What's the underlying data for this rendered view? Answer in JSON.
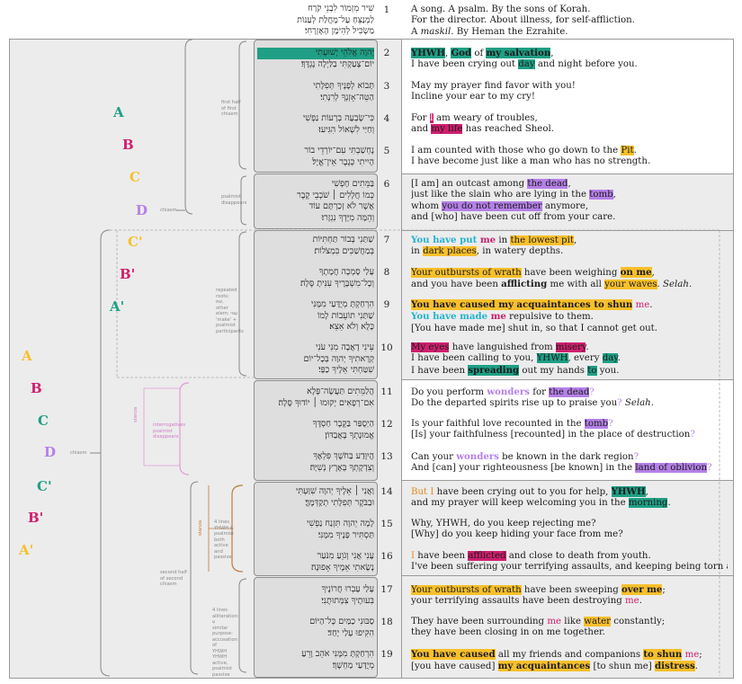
{
  "colors": {
    "orange": "#f7c02b",
    "green": "#1f9f85",
    "purple": "#b580e8",
    "magenta": "#cf1f6e",
    "cyan": "#22b3cf",
    "brown": "#c07a3c",
    "pink": "#e59ad8"
  },
  "outer_labels": {
    "a": "A",
    "b": "B",
    "c": "C",
    "d": "D",
    "c2": "C'",
    "b2": "B'",
    "a2": "A'"
  },
  "inner_labels_top": {
    "a": "A",
    "b": "B",
    "c": "C",
    "d": "D"
  },
  "inner_labels_mid": {
    "c2": "C'",
    "b2": "B'",
    "a2": "A'"
  },
  "notes": {
    "chiasm_outer": "chiasm",
    "chiasm_top": "chiasm",
    "first_half": "first half of first chiasm",
    "psalmist_disappears": "psalmist disappears",
    "repeated_roots": "repeated roots:\nשׁתּ,\nother elem: עִנּוּי\n'make' +\npsalmist\nparticipants",
    "interrogatives": "interrogatives\npsalmist disappears",
    "second_half": "second half of second chiasm",
    "four_lines_a": "4 lines\nYHWH &\npsalmist both\nactive and\npassive",
    "four_lines_b": "4 lines\nalliteration: עִ\nsimilar purpose:\naccusation of\nYHWH\nYHWH active,\npsalmist passive",
    "vertical_a": "stanza",
    "vertical_b": "stanza"
  },
  "verse_numbers": [
    "1",
    "2",
    "3",
    "4",
    "5",
    "6",
    "7",
    "8",
    "9",
    "10",
    "11",
    "12",
    "13",
    "14",
    "15",
    "16",
    "17",
    "18",
    "19"
  ],
  "hebrew": {
    "v1": [
      "שִׁיר מִזְמוֹר לִבְנֵי קֹרַח",
      "לַמְנַצֵּחַ עַל־מָחֲלַת לְעַנּוֹת",
      "מַשְׂכִּיל לְהֵימָן הָאֶזְרָחִי׃"
    ],
    "v2": [
      "יְהוָה אֱלֹהֵי יְשׁוּעָתִי",
      "יוֹם־צָעַקְתִּי בַלַּיְלָה נֶגְדֶּךָ׃"
    ],
    "v3": [
      "תָּבוֹא לְפָנֶיךָ תְּפִלָּתִי",
      "הַטֵּה־אָזְנְךָ לְרִנָּתִי׃"
    ],
    "v4": [
      "כִּי־שָׂבְעָה בְרָעוֹת נַפְשִׁי",
      "וְחַיַּי לִשְׁאוֹל הִגִּיעוּ׃"
    ],
    "v5": [
      "נֶחְשַׁבְתִּי עִם־יוֹרְדֵי בוֹר",
      "הָיִיתִי כְּגֶבֶר אֵין־אֱיָל׃"
    ],
    "v6": [
      "בַּמֵּתִים חָפְשִׁי",
      "כְּמוֹ חֲלָלִים ׀ שֹׁכְבֵי קֶבֶר",
      "אֲשֶׁר לֹא זְכַרְתָּם עוֹד",
      "וְהֵמָּה מִיָּדְךָ נִגְזָרוּ׃"
    ],
    "v7": [
      "שַׁתַּנִי בְּבוֹר תַּחְתִּיּוֹת",
      "בְּמַחֲשַׁכִּים בִּמְצֹלוֹת׃"
    ],
    "v8": [
      "עָלַי סָמְכָה חֲמָתֶךָ",
      "וְכָל־מִשְׁבָּרֶיךָ עִנִּיתָ סֶּלָה׃"
    ],
    "v9": [
      "הִרְחַקְתָּ מְיֻדָּעַי מִמֶּנִּי",
      "שַׁתַּנִי תוֹעֵבוֹת לָמוֹ",
      "כָּלֻא וְלֹא אֵצֵא׃"
    ],
    "v10": [
      "עֵינִי דָאֲבָה מִנִּי עֹנִי",
      "קְרָאתִיךָ יְהוָה בְּכָל־יוֹם",
      "שִׁטַּחְתִּי אֵלֶיךָ כַפָּי׃"
    ],
    "v11": [
      "הֲלַמֵּתִים תַּעֲשֶׂה־פֶּלֶא",
      "אִם־רְפָאִים יָקוּמוּ ׀ יוֹדוּךָ סֶּלָה׃"
    ],
    "v12": [
      "הַיְסֻפַּר בַּקֶּבֶר חַסְדֶּךָ",
      "אֱמוּנָתְךָ בָּאֲבַדּוֹן׃"
    ],
    "v13": [
      "הֲיִוָּדַע בַּחֹשֶׁךְ פִּלְאֶךָ",
      "וְצִדְקָתְךָ בְּאֶרֶץ נְשִׁיָּה׃"
    ],
    "v14": [
      "וַאֲנִי ׀ אֵלֶיךָ יְהוָה שִׁוַּעְתִּי",
      "וּבַבֹּקֶר תְּפִלָּתִי תְקַדְּמֶךָּ׃"
    ],
    "v15": [
      "לָמָה יְהוָה תִּזְנַח נַפְשִׁי",
      "תַּסְתִּיר פָּנֶיךָ מִמֶּנִּי׃"
    ],
    "v16": [
      "עָנִי אֲנִי וְגֹוֵעַ מִנֹּעַר",
      "נָשָׂאתִי אֵמֶיךָ אָפוּנָה׃"
    ],
    "v17": [
      "עָלַי עָבְרוּ חֲרוֹנֶיךָ",
      "בִּעוּתֶיךָ צִמְּתוּתֻנִי׃"
    ],
    "v18": [
      "סַבּוּנִי כַמַּיִם כָּל־הַיּוֹם",
      "הִקִּיפוּ עָלַי יָחַד׃"
    ],
    "v19": [
      "הִרְחַקְתָּ מִמֶּנִּי אֹהֵב וָרֵעַ",
      "מְיֻדָּעַי מַחְשָׁךְ׃"
    ]
  },
  "english": {
    "v1": {
      "l1": "A song. A psalm. By the sons of Korah.",
      "l2": "For the director. About illness, for self-affliction.",
      "l3a": "A ",
      "l3b": "maskil",
      "l3c": ". By Heman the Ezrahite."
    },
    "v2": {
      "a": "YHWH",
      "b": ",",
      "c": "God",
      "d": " of ",
      "e": "my salvation",
      ".": ",",
      "l2a": "I have been crying out ",
      "l2b": "day",
      "l2c": " and night before you."
    },
    "v3": {
      "l1": "May my prayer find favor with you!",
      "l2": "Incline your ear to my cry!"
    },
    "v4": {
      "a": "For ",
      "b": "I",
      "c": " am weary of troubles,",
      "d": "and ",
      "e": "my life",
      "f": " has reached Sheol."
    },
    "v5": {
      "a": "I am counted with those who go down to the ",
      "b": "Pit",
      ".": ".",
      "l2": "I have become just like a man who has no strength."
    },
    "v6": {
      "a": "[I am] an outcast among ",
      "b": "the dead",
      ".": ",",
      "c": "just like the slain who are lying in the ",
      "d": "tomb",
      "e": ",",
      "f": "whom ",
      "g": "you do not remember",
      "h": " anymore,",
      "l4": "and [who] have been cut off from your care."
    },
    "v7": {
      "a": "You have put ",
      "b": "me",
      "c": " in ",
      "d": "the lowest pit",
      "e": ",",
      "f": "in ",
      "g": "dark places",
      "h": ", in watery depths."
    },
    "v8": {
      "a": "Your outbursts of wrath",
      "b": " have been weighing ",
      "c": "on me",
      "d": ",",
      "e": "and you have been ",
      "f": "afflicting",
      "g": " me with all ",
      "h": "your waves",
      "i": ". ",
      "j": "Selah",
      "k": "."
    },
    "v9": {
      "a": "You have caused my acquaintances to shun",
      "b": " me",
      "c": ".",
      "d": "You have made",
      "e": " me",
      "f": " repulsive to them.",
      "l3": "[You have made me] shut in, so that I cannot get out."
    },
    "v10": {
      "a": "My eyes",
      "b": " have languished from ",
      "c": "misery",
      "d": ".",
      "e": "I have been calling to you, ",
      "f": "YHWH",
      "g": ", every ",
      "h": "day",
      "i": ".",
      "j": "I have been ",
      "k": "spreading",
      "l": " out my hands ",
      "m": "to",
      "n": " you."
    },
    "v11": {
      "a": "Do you perform ",
      "b": "wonders",
      "c": " for ",
      "d": "the dead",
      "e": "?",
      "f": "Do the departed spirits rise up to praise you",
      "g": "? ",
      "h": "Selah",
      "i": "."
    },
    "v12": {
      "a": "Is your faithful love recounted in the ",
      "b": "tomb",
      "c": "?",
      "l2a": "[Is] your faithfulness [recounted] in the place of destruction",
      "l2b": "?"
    },
    "v13": {
      "a": "Can your ",
      "b": "wonders",
      "c": " be known in the dark region",
      "d": "?",
      "e": "And [can] your righteousness [be known] in the ",
      "f": "land of oblivion",
      "g": "?"
    },
    "v14": {
      "a": "But I",
      "b": " have been crying out to you for help, ",
      "c": "YHWH",
      "d": ",",
      "e": "and my prayer will keep welcoming you in the ",
      "f": "morning",
      "g": "."
    },
    "v15": {
      "l1": "Why, YHWH, do you keep rejecting me?",
      "l2": "[Why] do you keep hiding your face from me?"
    },
    "v16": {
      "a": "I",
      "b": " have been ",
      "c": "afflicted",
      "d": " and close to death from youth.",
      "l2": "I've been suffering your terrifying assaults, and keeping being torn apart."
    },
    "v17": {
      "a": "Your outbursts of wrath",
      "b": " have been sweeping ",
      "c": "over me",
      "d": ";",
      "e": "your terrifying assaults have been destroying ",
      "f": "me",
      "g": "."
    },
    "v18": {
      "a": "They have been surrounding ",
      "b": "me",
      "c": " like ",
      "d": "water",
      "e": " constantly;",
      "l2": "they have been closing in on me together."
    },
    "v19": {
      "a": "You have caused",
      "b": " all my friends and companions ",
      "c": "to shun",
      "d": " me",
      "e": ";",
      "f": "[you have caused] ",
      "g": "my acquaintances",
      "h": " [to shun me] ",
      "i": "distress",
      "j": "."
    }
  }
}
